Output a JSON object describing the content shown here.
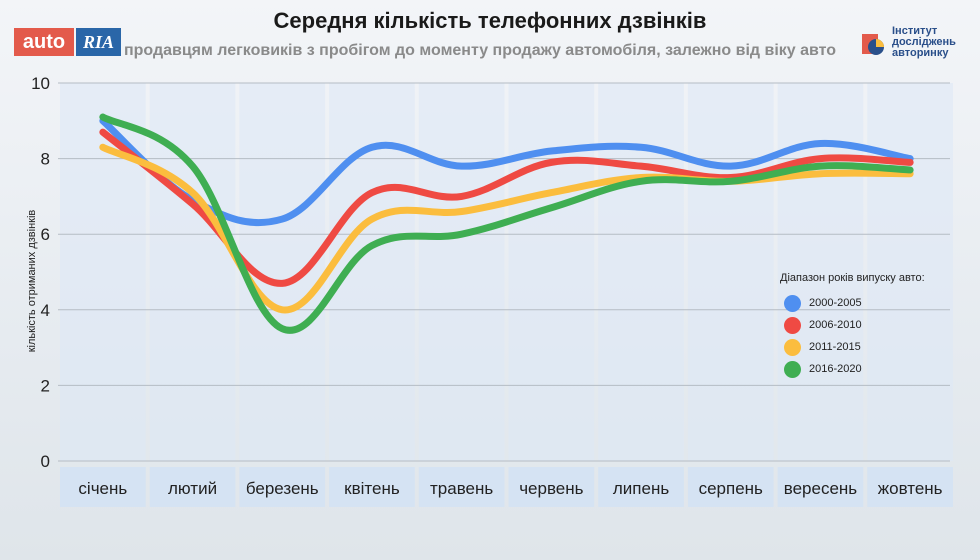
{
  "header": {
    "title": "Середня кількість телефонних дзвінків",
    "subtitle": "продавцям легковиків з пробігом до моменту продажу автомобіля, залежно від віку авто",
    "logo_auto": "auto",
    "logo_ria": "RIA",
    "institute_lines": [
      "Інститут",
      "досліджень",
      "авторинку"
    ]
  },
  "colors": {
    "blue": "#4f8ff0",
    "red": "#ef4a43",
    "yellow": "#fbbd3e",
    "green": "#3fae52"
  },
  "chart_data": {
    "type": "line",
    "title": "Середня кількість телефонних дзвінків",
    "ylabel": "кількість отриманих дзвінків",
    "xlabel": "",
    "ylim": [
      0,
      10
    ],
    "yticks": [
      0,
      2,
      4,
      6,
      8,
      10
    ],
    "grid": true,
    "legend_title": "Діапазон років випуску авто:",
    "legend_position": "right",
    "categories": [
      "січень",
      "лютий",
      "березень",
      "квітень",
      "травень",
      "червень",
      "липень",
      "серпень",
      "вересень",
      "жовтень"
    ],
    "series": [
      {
        "name": "2000-2005",
        "color": "#4f8ff0",
        "values": [
          9.0,
          6.9,
          6.4,
          8.3,
          7.8,
          8.2,
          8.3,
          7.8,
          8.4,
          8.0
        ]
      },
      {
        "name": "2006-2010",
        "color": "#ef4a43",
        "values": [
          8.7,
          6.8,
          4.7,
          7.1,
          7.0,
          7.9,
          7.8,
          7.5,
          8.0,
          7.9
        ]
      },
      {
        "name": "2011-2015",
        "color": "#fbbd3e",
        "values": [
          8.3,
          7.1,
          4.0,
          6.4,
          6.6,
          7.1,
          7.5,
          7.4,
          7.6,
          7.6
        ]
      },
      {
        "name": "2016-2020",
        "color": "#3fae52",
        "values": [
          9.1,
          7.8,
          3.5,
          5.7,
          6.0,
          6.7,
          7.4,
          7.4,
          7.8,
          7.7
        ]
      }
    ]
  }
}
